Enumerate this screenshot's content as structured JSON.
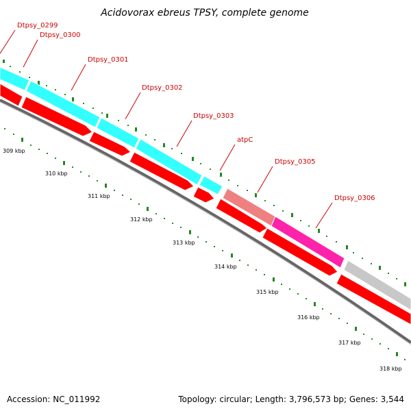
{
  "title": "Acidovorax ebreus TPSY, complete genome",
  "footer": {
    "accession": "Accession: NC_011992",
    "summary": "Topology: circular; Length: 3,796,573 bp; Genes: 3,544"
  },
  "colors": {
    "label": "#cc0000",
    "cds": "#ff0000",
    "cyan": "#33ffff",
    "salmon": "#ee8080",
    "magenta": "#ff22aa",
    "grey": "#c8c8c8",
    "backbone": "#777777",
    "tick": "#228822"
  },
  "gene_labels": [
    {
      "id": "dtpsy-0299",
      "text": "Dtpsy_0299"
    },
    {
      "id": "dtpsy-0300",
      "text": "Dtpsy_0300"
    },
    {
      "id": "dtpsy-0301",
      "text": "Dtpsy_0301"
    },
    {
      "id": "dtpsy-0302",
      "text": "Dtpsy_0302"
    },
    {
      "id": "dtpsy-0303",
      "text": "Dtpsy_0303"
    },
    {
      "id": "atpc",
      "text": "atpC"
    },
    {
      "id": "dtpsy-0305",
      "text": "Dtpsy_0305"
    },
    {
      "id": "dtpsy-0306",
      "text": "Dtpsy_0306"
    }
  ],
  "kbp_labels": [
    "309 kbp",
    "310 kbp",
    "311 kbp",
    "312 kbp",
    "313 kbp",
    "314 kbp",
    "315 kbp",
    "316 kbp",
    "317 kbp",
    "318 kbp"
  ]
}
